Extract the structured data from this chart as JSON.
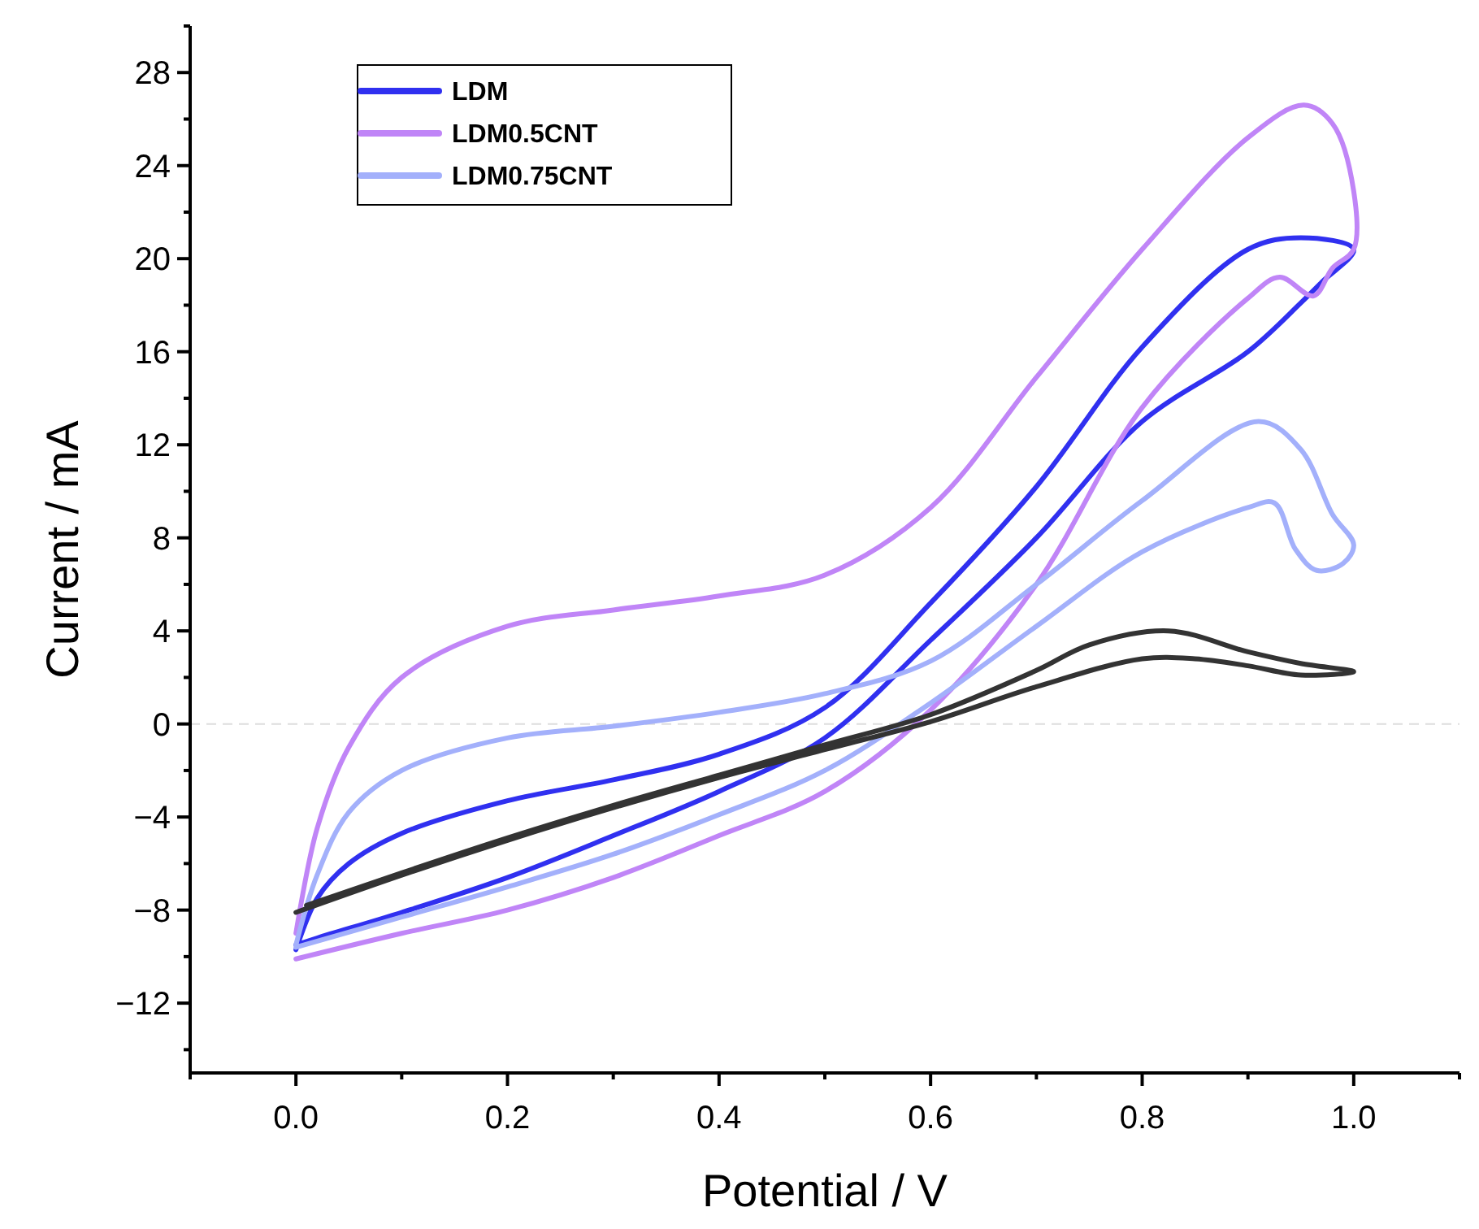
{
  "chart_data": {
    "type": "line",
    "xlabel": "Potential / V",
    "ylabel": "Current / mA",
    "xlim": [
      -0.1,
      1.1
    ],
    "ylim": [
      -15,
      30
    ],
    "xticks": [
      {
        "value": -0.1,
        "label": null
      },
      {
        "value": 0,
        "label": "0.0"
      },
      {
        "value": 0.1,
        "label": null
      },
      {
        "value": 0.2,
        "label": "0.2"
      },
      {
        "value": 0.3,
        "label": null
      },
      {
        "value": 0.4,
        "label": "0.4"
      },
      {
        "value": 0.5,
        "label": null
      },
      {
        "value": 0.6,
        "label": "0.6"
      },
      {
        "value": 0.7,
        "label": null
      },
      {
        "value": 0.8,
        "label": "0.8"
      },
      {
        "value": 0.9,
        "label": null
      },
      {
        "value": 1,
        "label": "1.0"
      },
      {
        "value": 1.1,
        "label": null
      }
    ],
    "yticks": [
      {
        "value": -14,
        "label": null
      },
      -12,
      {
        "value": -10,
        "label": null
      },
      -8,
      {
        "value": -6,
        "label": null
      },
      -4,
      {
        "value": -2,
        "label": null
      },
      0,
      {
        "value": 2,
        "label": null
      },
      4,
      {
        "value": 6,
        "label": null
      },
      8,
      {
        "value": 10,
        "label": null
      },
      12,
      {
        "value": 14,
        "label": null
      },
      16,
      {
        "value": 18,
        "label": null
      },
      20,
      {
        "value": 22,
        "label": null
      },
      24,
      {
        "value": 26,
        "label": null
      },
      28,
      {
        "value": 30,
        "label": null
      }
    ],
    "grid": false,
    "legend": "top left",
    "marker": "none",
    "line_style": "solid",
    "ref_lines": [
      {
        "axis": "y",
        "value": 0,
        "color": "#dddddd",
        "line_style": "dashed"
      }
    ],
    "series": [
      {
        "name": "LDM",
        "color": "#3030f0",
        "x": [
          0,
          0.02,
          0.05,
          0.1,
          0.2,
          0.3,
          0.4,
          0.5,
          0.6,
          0.7,
          0.8,
          0.9,
          0.95,
          1.0,
          0.97,
          0.95,
          0.9,
          0.8,
          0.7,
          0.6,
          0.5,
          0.4,
          0.3,
          0.2,
          0.1,
          0.02,
          0
        ],
        "values": [
          -9.7,
          -7.5,
          -6.0,
          -4.7,
          -3.3,
          -2.4,
          -1.3,
          0.7,
          5.2,
          10.2,
          16.2,
          20.4,
          20.9,
          20.4,
          19.0,
          18.1,
          16.0,
          13.0,
          8.0,
          3.6,
          -0.6,
          -2.9,
          -4.8,
          -6.6,
          -8.1,
          -9.2,
          -9.5
        ]
      },
      {
        "name": "LDM0.5CNT",
        "color": "#c085f7",
        "x": [
          0,
          0.02,
          0.05,
          0.1,
          0.2,
          0.3,
          0.4,
          0.5,
          0.6,
          0.7,
          0.8,
          0.9,
          0.953,
          0.98,
          1.0,
          1.0,
          0.98,
          0.962,
          0.93,
          0.9,
          0.8,
          0.7,
          0.6,
          0.5,
          0.4,
          0.3,
          0.2,
          0.1,
          0
        ],
        "values": [
          -9.0,
          -4.5,
          -1.0,
          2.0,
          4.2,
          4.9,
          5.5,
          6.4,
          9.3,
          14.9,
          20.4,
          25.2,
          26.6,
          25.8,
          22.9,
          20.4,
          19.6,
          18.4,
          19.2,
          18.3,
          13.6,
          6.0,
          0.6,
          -2.9,
          -4.8,
          -6.6,
          -8.0,
          -9.0,
          -10.1
        ]
      },
      {
        "name": "LDM0.75CNT",
        "color": "#a3b0fb",
        "x": [
          0,
          0.02,
          0.05,
          0.1,
          0.2,
          0.3,
          0.4,
          0.5,
          0.6,
          0.7,
          0.8,
          0.91,
          0.95,
          0.98,
          1.0,
          0.99,
          0.965,
          0.945,
          0.925,
          0.9,
          0.8,
          0.7,
          0.6,
          0.5,
          0.4,
          0.3,
          0.2,
          0.1,
          0
        ],
        "values": [
          -9.5,
          -6.5,
          -3.8,
          -2.0,
          -0.6,
          -0.1,
          0.5,
          1.3,
          2.7,
          6.0,
          9.6,
          13.0,
          11.8,
          9.0,
          7.7,
          6.9,
          6.6,
          7.5,
          9.5,
          9.3,
          7.4,
          4.2,
          0.9,
          -2.0,
          -3.9,
          -5.6,
          -7.0,
          -8.3,
          -9.6
        ]
      },
      {
        "color": "#333333",
        "x": [
          0,
          0.1,
          0.2,
          0.3,
          0.4,
          0.5,
          0.6,
          0.7,
          0.8,
          0.85,
          0.9,
          0.95,
          1.0,
          0.95,
          0.9,
          0.825,
          0.75,
          0.7,
          0.6,
          0.5,
          0.4,
          0.3,
          0.2,
          0.1,
          0.01
        ],
        "values": [
          -8.1,
          -6.5,
          -5.0,
          -3.6,
          -2.3,
          -1.1,
          0.1,
          1.6,
          2.8,
          2.8,
          2.5,
          2.1,
          2.25,
          2.6,
          3.1,
          4.0,
          3.4,
          2.3,
          0.4,
          -0.9,
          -2.2,
          -3.5,
          -4.9,
          -6.4,
          -7.8
        ]
      }
    ]
  }
}
